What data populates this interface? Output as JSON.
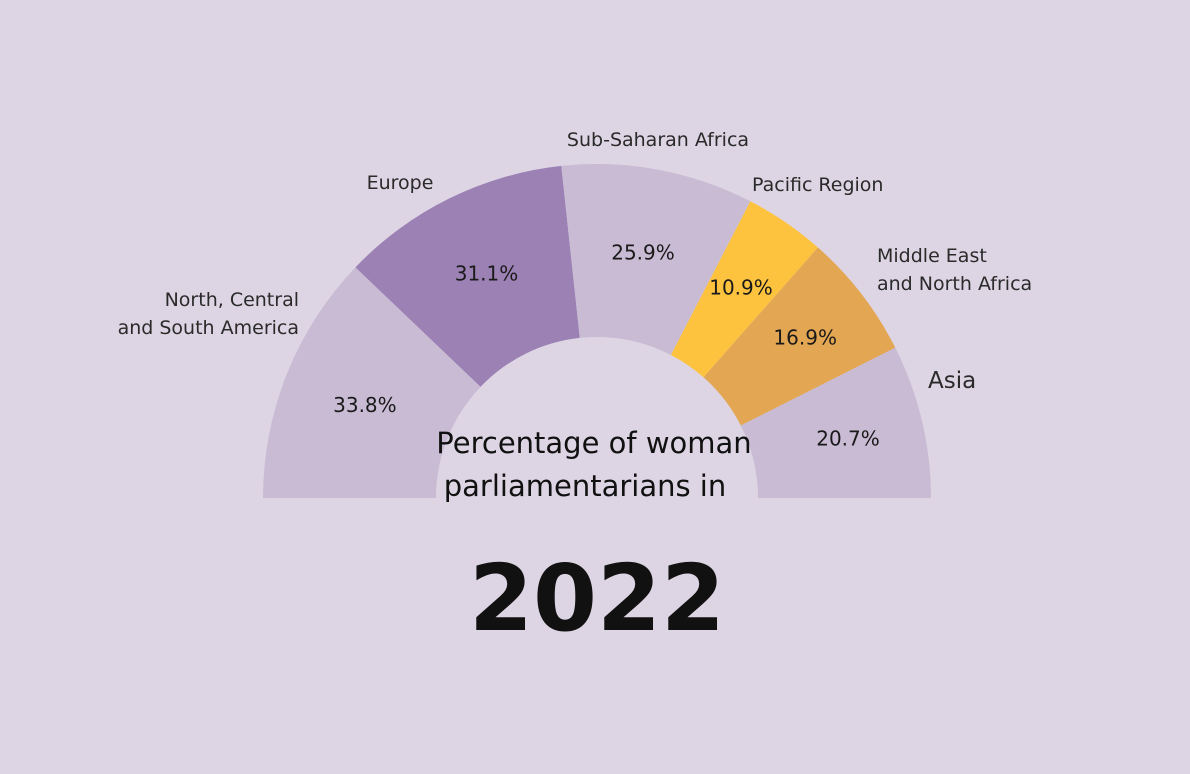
{
  "chart_data": {
    "type": "pie",
    "subtype": "semicircle-donut",
    "title_lines": [
      "Percentage of woman",
      "parliamentarians in"
    ],
    "year": "2022",
    "segments": [
      {
        "label_lines": [
          "North, Central",
          "and South America"
        ],
        "value": 33.8,
        "display": "33.8%",
        "color": "#c8bbd3"
      },
      {
        "label_lines": [
          "Europe"
        ],
        "value": 31.1,
        "display": "31.1%",
        "color": "#9c81b5"
      },
      {
        "label_lines": [
          "Sub-Saharan Africa"
        ],
        "value": 25.9,
        "display": "25.9%",
        "color": "#c8bbd3"
      },
      {
        "label_lines": [
          "Pacific Region"
        ],
        "value": 10.9,
        "display": "10.9%",
        "color": "#fdc33f"
      },
      {
        "label_lines": [
          "Middle East",
          "and North Africa"
        ],
        "value": 16.9,
        "display": "16.9%",
        "color": "#e3a652"
      },
      {
        "label_lines": [
          "Asia"
        ],
        "value": 20.7,
        "display": "20.7%",
        "color": "#c8bbd3"
      }
    ]
  },
  "colors": {
    "background": "#ddd5e3",
    "text": "#111111"
  }
}
